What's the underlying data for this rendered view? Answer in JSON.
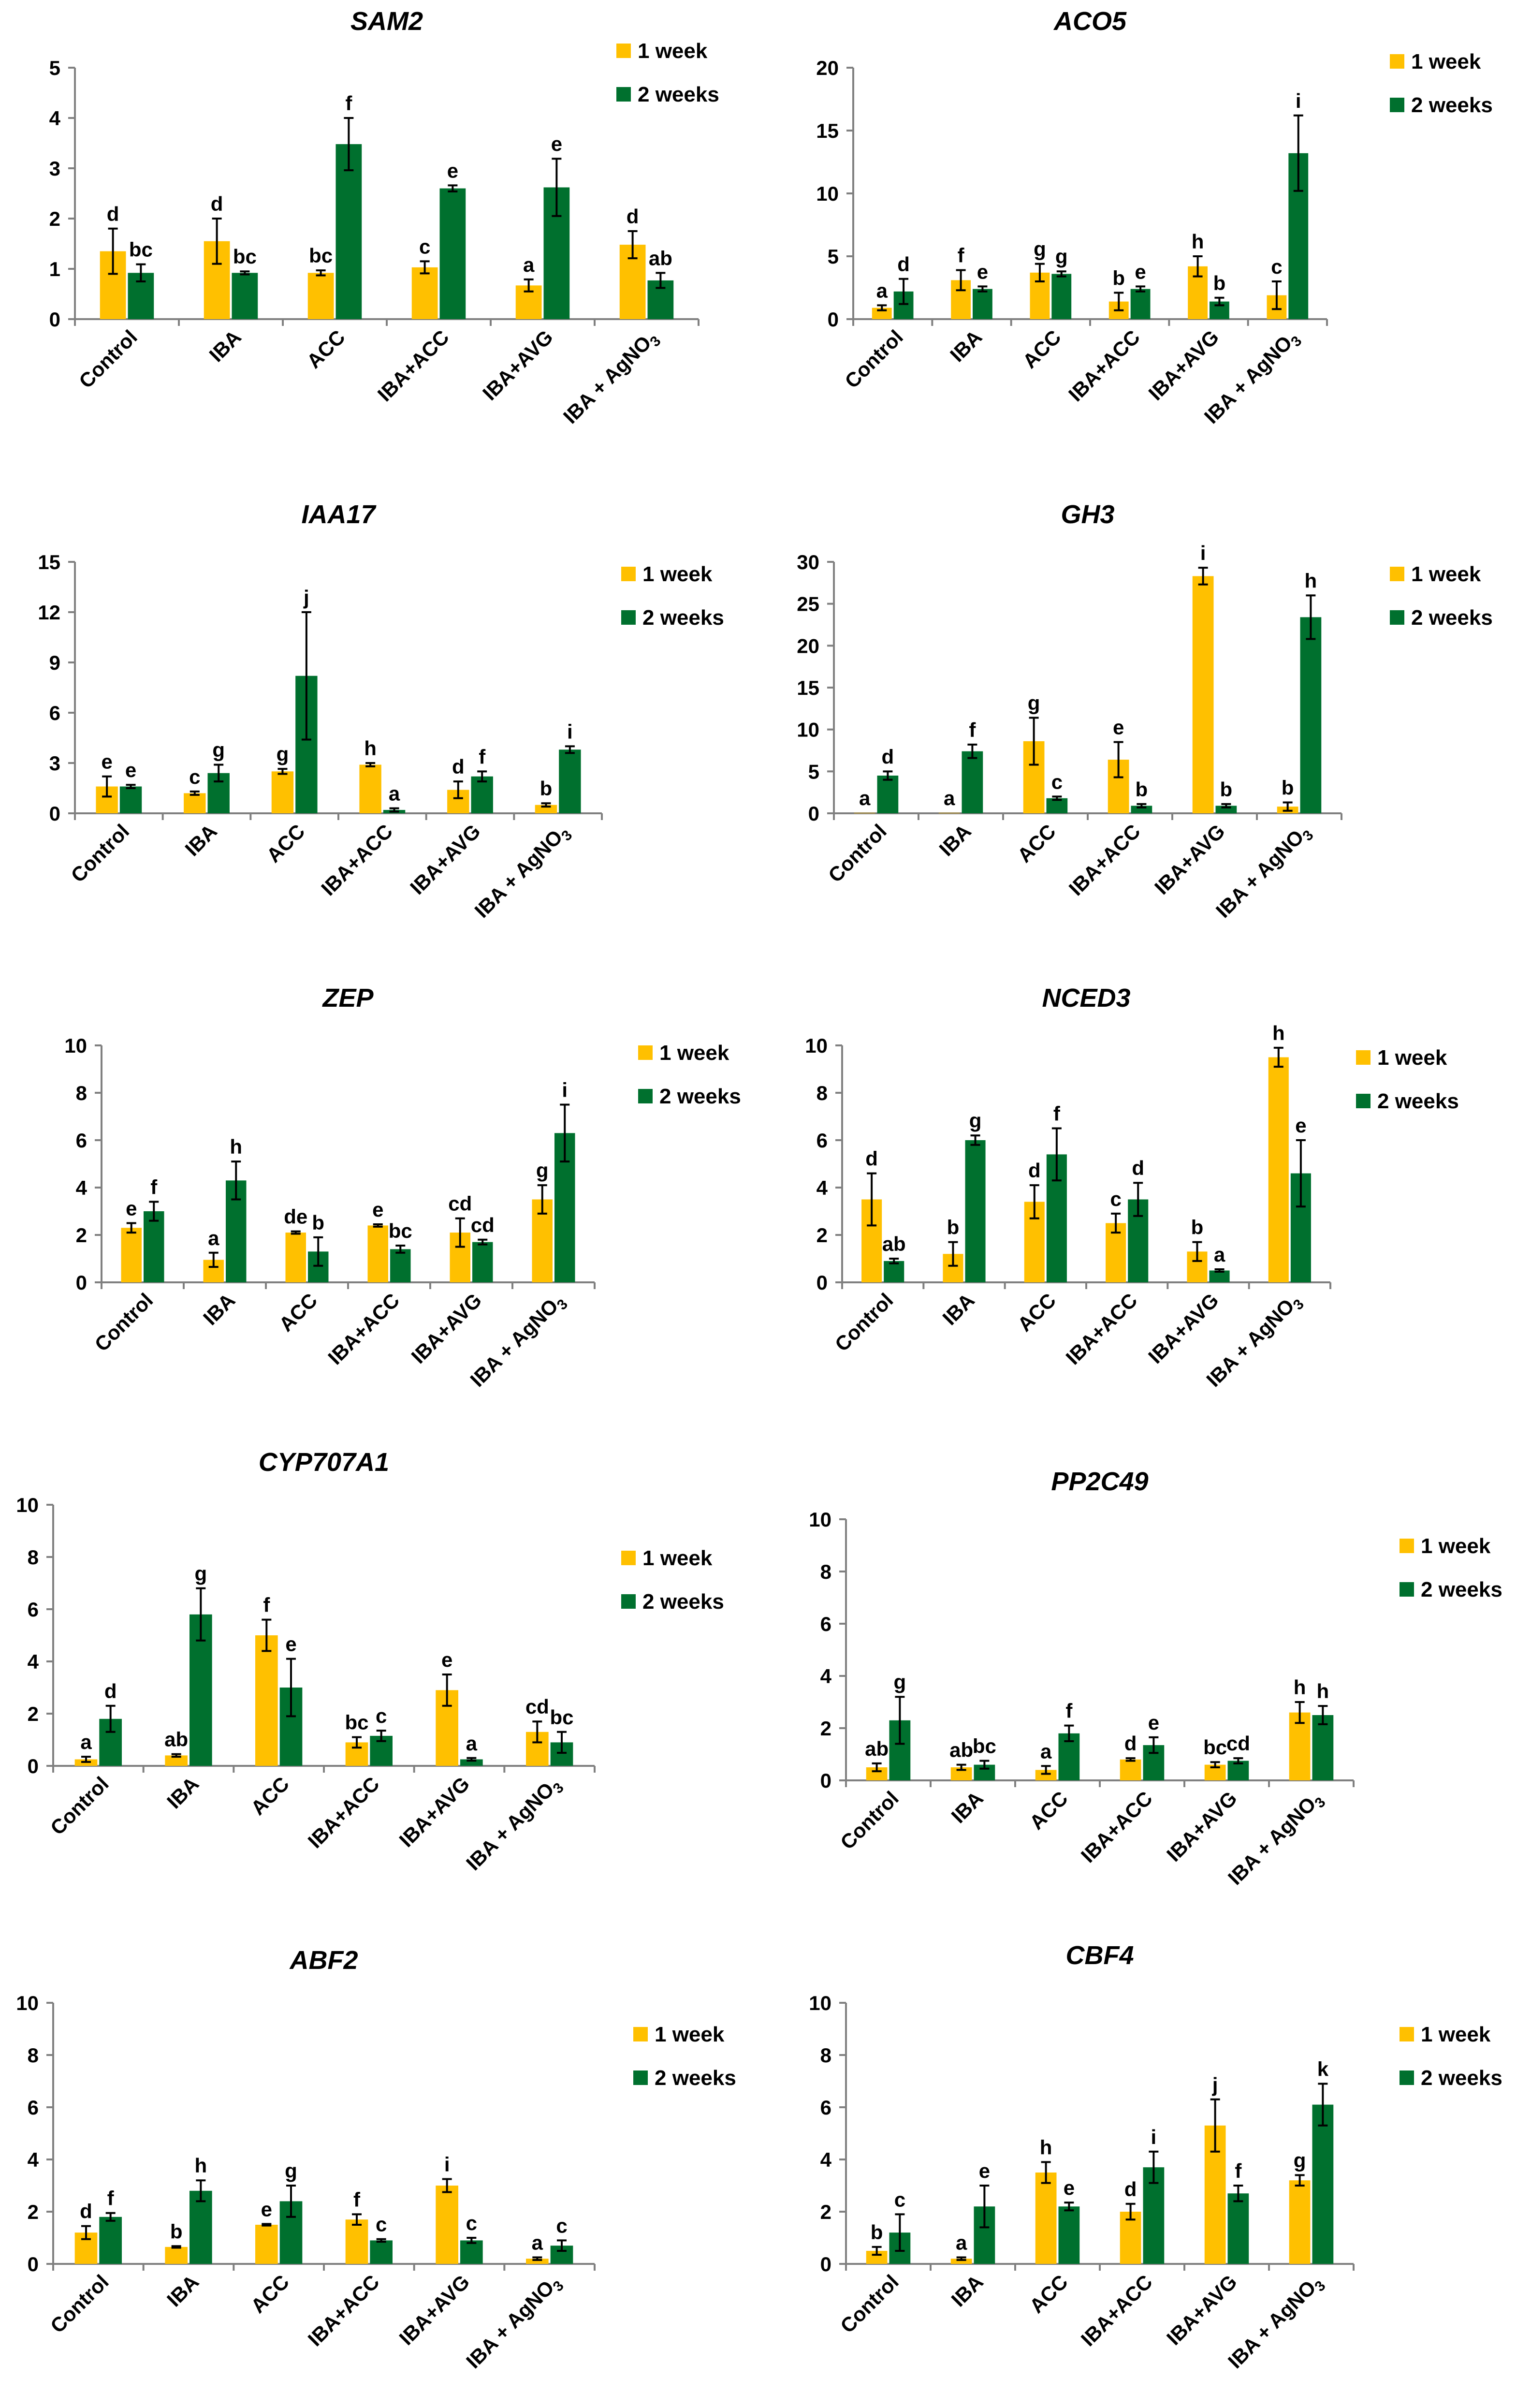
{
  "colors": {
    "week1": "#FFC000",
    "week2": "#00702E",
    "axis": "#808080",
    "text": "#000000"
  },
  "legend": {
    "week1": "1 week",
    "week2": "2 weeks"
  },
  "chart_data": [
    {
      "type": "bar",
      "title": "SAM2",
      "categories": [
        "Control",
        "IBA",
        "ACC",
        "IBA+ACC",
        "IBA+AVG",
        "IBA + AgNO3"
      ],
      "ylim": [
        0,
        5
      ],
      "yticks": [
        0,
        1,
        2,
        3,
        4,
        5
      ],
      "series": [
        {
          "name": "1 week",
          "values": [
            1.35,
            1.55,
            0.92,
            1.03,
            0.67,
            1.48
          ],
          "errors": [
            0.45,
            0.45,
            0.05,
            0.12,
            0.12,
            0.27
          ],
          "labels": [
            "d",
            "d",
            "bc",
            "c",
            "a",
            "d"
          ]
        },
        {
          "name": "2 weeks",
          "values": [
            0.92,
            0.92,
            3.48,
            2.6,
            2.62,
            0.77
          ],
          "errors": [
            0.17,
            0.03,
            0.52,
            0.06,
            0.57,
            0.15
          ],
          "labels": [
            "bc",
            "bc",
            "f",
            "e",
            "e",
            "ab"
          ]
        }
      ]
    },
    {
      "type": "bar",
      "title": "ACO5",
      "categories": [
        "Control",
        "IBA",
        "ACC",
        "IBA+ACC",
        "IBA+AVG",
        "IBA + AgNO3"
      ],
      "ylim": [
        0,
        20
      ],
      "yticks": [
        0,
        5,
        10,
        15,
        20
      ],
      "series": [
        {
          "name": "1 week",
          "values": [
            0.9,
            3.1,
            3.7,
            1.4,
            4.2,
            1.9
          ],
          "errors": [
            0.2,
            0.8,
            0.7,
            0.7,
            0.8,
            1.1
          ],
          "labels": [
            "a",
            "f",
            "g",
            "b",
            "h",
            "c"
          ]
        },
        {
          "name": "2 weeks",
          "values": [
            2.2,
            2.4,
            3.6,
            2.4,
            1.4,
            13.2
          ],
          "errors": [
            1.0,
            0.2,
            0.2,
            0.2,
            0.3,
            3.0
          ],
          "labels": [
            "d",
            "e",
            "g",
            "e",
            "b",
            "i"
          ]
        }
      ]
    },
    {
      "type": "bar",
      "title": "IAA17",
      "categories": [
        "Control",
        "IBA",
        "ACC",
        "IBA+ACC",
        "IBA+AVG",
        "IBA + AgNO3"
      ],
      "ylim": [
        0,
        15
      ],
      "yticks": [
        0,
        3,
        6,
        9,
        12,
        15
      ],
      "series": [
        {
          "name": "1 week",
          "values": [
            1.6,
            1.2,
            2.5,
            2.9,
            1.4,
            0.5
          ],
          "errors": [
            0.6,
            0.1,
            0.15,
            0.1,
            0.5,
            0.1
          ],
          "labels": [
            "e",
            "c",
            "g",
            "h",
            "d",
            "b"
          ]
        },
        {
          "name": "2 weeks",
          "values": [
            1.6,
            2.4,
            8.2,
            0.2,
            2.2,
            3.8
          ],
          "errors": [
            0.1,
            0.5,
            3.8,
            0.1,
            0.3,
            0.2
          ],
          "labels": [
            "e",
            "g",
            "j",
            "a",
            "f",
            "i"
          ]
        }
      ]
    },
    {
      "type": "bar",
      "title": "GH3",
      "categories": [
        "Control",
        "IBA",
        "ACC",
        "IBA+ACC",
        "IBA+AVG",
        "IBA + AgNO3"
      ],
      "ylim": [
        0,
        30
      ],
      "yticks": [
        0,
        5,
        10,
        15,
        20,
        25,
        30
      ],
      "series": [
        {
          "name": "1 week",
          "values": [
            0.05,
            0.05,
            8.6,
            6.4,
            28.3,
            0.8
          ],
          "errors": [
            0,
            0,
            2.8,
            2.1,
            1.0,
            0.5
          ],
          "labels": [
            "a",
            "a",
            "g",
            "e",
            "i",
            "b"
          ]
        },
        {
          "name": "2 weeks",
          "values": [
            4.5,
            7.4,
            1.8,
            0.9,
            0.9,
            23.4
          ],
          "errors": [
            0.5,
            0.8,
            0.2,
            0.2,
            0.2,
            2.6
          ],
          "labels": [
            "d",
            "f",
            "c",
            "b",
            "b",
            "h"
          ]
        }
      ]
    },
    {
      "type": "bar",
      "title": "ZEP",
      "categories": [
        "Control",
        "IBA",
        "ACC",
        "IBA+ACC",
        "IBA+AVG",
        "IBA + AgNO3"
      ],
      "ylim": [
        0,
        10
      ],
      "yticks": [
        0,
        2,
        4,
        6,
        8,
        10
      ],
      "series": [
        {
          "name": "1 week",
          "values": [
            2.3,
            0.95,
            2.1,
            2.4,
            2.1,
            3.5
          ],
          "errors": [
            0.2,
            0.3,
            0.05,
            0.05,
            0.6,
            0.6
          ],
          "labels": [
            "e",
            "a",
            "de",
            "e",
            "cd",
            "g"
          ]
        },
        {
          "name": "2 weeks",
          "values": [
            3.0,
            4.3,
            1.3,
            1.4,
            1.7,
            6.3
          ],
          "errors": [
            0.4,
            0.8,
            0.6,
            0.15,
            0.1,
            1.2
          ],
          "labels": [
            "f",
            "h",
            "b",
            "bc",
            "cd",
            "i"
          ]
        }
      ]
    },
    {
      "type": "bar",
      "title": "NCED3",
      "categories": [
        "Control",
        "IBA",
        "ACC",
        "IBA+ACC",
        "IBA+AVG",
        "IBA + AgNO3"
      ],
      "ylim": [
        0,
        10
      ],
      "yticks": [
        0,
        2,
        4,
        6,
        8,
        10
      ],
      "series": [
        {
          "name": "1 week",
          "values": [
            3.5,
            1.2,
            3.4,
            2.5,
            1.3,
            9.5
          ],
          "errors": [
            1.1,
            0.5,
            0.7,
            0.4,
            0.4,
            0.4
          ],
          "labels": [
            "d",
            "b",
            "d",
            "c",
            "b",
            "h"
          ]
        },
        {
          "name": "2 weeks",
          "values": [
            0.9,
            6.0,
            5.4,
            3.5,
            0.5,
            4.6
          ],
          "errors": [
            0.1,
            0.2,
            1.1,
            0.7,
            0.05,
            1.4
          ],
          "labels": [
            "ab",
            "g",
            "f",
            "d",
            "a",
            "e"
          ]
        }
      ]
    },
    {
      "type": "bar",
      "title": "CYP707A1",
      "categories": [
        "Control",
        "IBA",
        "ACC",
        "IBA+ACC",
        "IBA+AVG",
        "IBA + AgNO3"
      ],
      "ylim": [
        0,
        10
      ],
      "yticks": [
        0,
        2,
        4,
        6,
        8,
        10
      ],
      "series": [
        {
          "name": "1 week",
          "values": [
            0.25,
            0.4,
            5.0,
            0.9,
            2.9,
            1.3
          ],
          "errors": [
            0.1,
            0.05,
            0.6,
            0.2,
            0.6,
            0.4
          ],
          "labels": [
            "a",
            "ab",
            "f",
            "bc",
            "e",
            "cd"
          ]
        },
        {
          "name": "2 weeks",
          "values": [
            1.8,
            5.8,
            3.0,
            1.15,
            0.25,
            0.9
          ],
          "errors": [
            0.5,
            1.0,
            1.1,
            0.2,
            0.05,
            0.4
          ],
          "labels": [
            "d",
            "g",
            "e",
            "c",
            "a",
            "bc"
          ]
        }
      ]
    },
    {
      "type": "bar",
      "title": "PP2C49",
      "categories": [
        "Control",
        "IBA",
        "ACC",
        "IBA+ACC",
        "IBA+AVG",
        "IBA + AgNO3"
      ],
      "ylim": [
        0,
        10
      ],
      "yticks": [
        0,
        2,
        4,
        6,
        8,
        10
      ],
      "series": [
        {
          "name": "1 week",
          "values": [
            0.5,
            0.5,
            0.4,
            0.8,
            0.6,
            2.6
          ],
          "errors": [
            0.15,
            0.1,
            0.15,
            0.05,
            0.1,
            0.4
          ],
          "labels": [
            "ab",
            "ab",
            "a",
            "d",
            "bc",
            "h"
          ]
        },
        {
          "name": "2 weeks",
          "values": [
            2.3,
            0.6,
            1.8,
            1.35,
            0.75,
            2.5
          ],
          "errors": [
            0.9,
            0.15,
            0.3,
            0.3,
            0.1,
            0.35
          ],
          "labels": [
            "g",
            "bc",
            "f",
            "e",
            "cd",
            "h"
          ]
        }
      ]
    },
    {
      "type": "bar",
      "title": "ABF2",
      "categories": [
        "Control",
        "IBA",
        "ACC",
        "IBA+ACC",
        "IBA+AVG",
        "IBA + AgNO3"
      ],
      "ylim": [
        0,
        10
      ],
      "yticks": [
        0,
        2,
        4,
        6,
        8,
        10
      ],
      "series": [
        {
          "name": "1 week",
          "values": [
            1.2,
            0.65,
            1.5,
            1.7,
            3.0,
            0.2
          ],
          "errors": [
            0.25,
            0.03,
            0.03,
            0.2,
            0.25,
            0.05
          ],
          "labels": [
            "d",
            "b",
            "e",
            "f",
            "i",
            "a"
          ]
        },
        {
          "name": "2 weeks",
          "values": [
            1.8,
            2.8,
            2.4,
            0.9,
            0.9,
            0.7
          ],
          "errors": [
            0.15,
            0.4,
            0.6,
            0.05,
            0.1,
            0.2
          ],
          "labels": [
            "f",
            "h",
            "g",
            "c",
            "c",
            "c"
          ]
        }
      ]
    },
    {
      "type": "bar",
      "title": "CBF4",
      "categories": [
        "Control",
        "IBA",
        "ACC",
        "IBA+ACC",
        "IBA+AVG",
        "IBA + AgNO3"
      ],
      "ylim": [
        0,
        10
      ],
      "yticks": [
        0,
        2,
        4,
        6,
        8,
        10
      ],
      "series": [
        {
          "name": "1 week",
          "values": [
            0.5,
            0.2,
            3.5,
            2.0,
            5.3,
            3.2
          ],
          "errors": [
            0.15,
            0.05,
            0.4,
            0.3,
            1.0,
            0.2
          ],
          "labels": [
            "b",
            "a",
            "h",
            "d",
            "j",
            "g"
          ]
        },
        {
          "name": "2 weeks",
          "values": [
            1.2,
            2.2,
            2.2,
            3.7,
            2.7,
            6.1
          ],
          "errors": [
            0.7,
            0.8,
            0.15,
            0.6,
            0.3,
            0.8
          ],
          "labels": [
            "c",
            "e",
            "e",
            "i",
            "f",
            "k"
          ]
        }
      ]
    }
  ]
}
